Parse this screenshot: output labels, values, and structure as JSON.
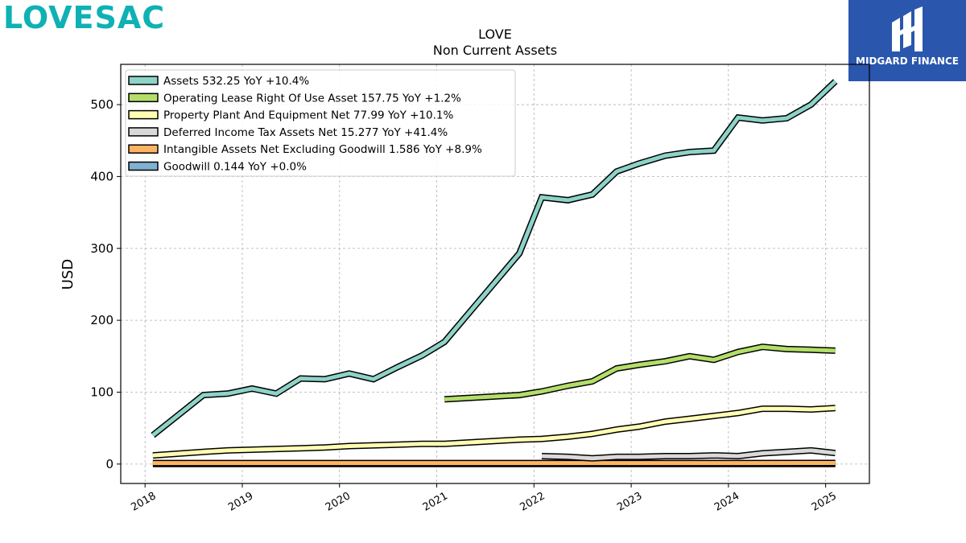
{
  "brand": {
    "logo_text": "LOVESAC"
  },
  "badge": {
    "label": "MIDGARD FINANCE",
    "color": "#2a56ad"
  },
  "chart_data": {
    "type": "line",
    "title": "LOVE",
    "subtitle": "Non Current  Assets",
    "xlabel": "",
    "ylabel": "USD",
    "ylim": [
      -27,
      556
    ],
    "xlim": [
      2017.75,
      2025.45
    ],
    "yticks": [
      0,
      100,
      200,
      300,
      400,
      500
    ],
    "xticks": [
      2018,
      2019,
      2020,
      2021,
      2022,
      2023,
      2024,
      2025
    ],
    "grid": true,
    "legend_position": "top-left",
    "series": [
      {
        "name": "Assets",
        "legend_label": "Assets  532.25 YoY +10.4%",
        "color": "#8dd3c7",
        "points": [
          [
            2018.08,
            40
          ],
          [
            2018.6,
            96
          ],
          [
            2018.85,
            98
          ],
          [
            2019.1,
            105
          ],
          [
            2019.35,
            98
          ],
          [
            2019.6,
            119
          ],
          [
            2019.85,
            118
          ],
          [
            2020.1,
            126
          ],
          [
            2020.35,
            118
          ],
          [
            2020.6,
            135
          ],
          [
            2020.85,
            151
          ],
          [
            2021.08,
            170
          ],
          [
            2021.85,
            293
          ],
          [
            2022.08,
            371
          ],
          [
            2022.35,
            367
          ],
          [
            2022.6,
            375
          ],
          [
            2022.85,
            407
          ],
          [
            2023.08,
            418
          ],
          [
            2023.35,
            429
          ],
          [
            2023.6,
            434
          ],
          [
            2023.85,
            436
          ],
          [
            2024.1,
            482
          ],
          [
            2024.35,
            478
          ],
          [
            2024.6,
            481
          ],
          [
            2024.85,
            500
          ],
          [
            2025.1,
            532.25
          ]
        ]
      },
      {
        "name": "Operating Lease Right Of Use Asset",
        "legend_label": "Operating Lease Right Of Use Asset  157.75 YoY +1.2%",
        "color": "#b3de69",
        "points": [
          [
            2021.08,
            90
          ],
          [
            2021.85,
            96
          ],
          [
            2022.08,
            101
          ],
          [
            2022.35,
            109
          ],
          [
            2022.6,
            115
          ],
          [
            2022.85,
            133
          ],
          [
            2023.08,
            138
          ],
          [
            2023.35,
            143
          ],
          [
            2023.6,
            150
          ],
          [
            2023.85,
            145
          ],
          [
            2024.1,
            156
          ],
          [
            2024.35,
            163
          ],
          [
            2024.6,
            160
          ],
          [
            2024.85,
            159
          ],
          [
            2025.1,
            157.75
          ]
        ]
      },
      {
        "name": "Property Plant And Equipment Net",
        "legend_label": "Property Plant And Equipment Net  77.99 YoY +10.1%",
        "color": "#ffffb3",
        "points": [
          [
            2018.08,
            12
          ],
          [
            2018.6,
            17
          ],
          [
            2018.85,
            19
          ],
          [
            2019.1,
            20
          ],
          [
            2019.35,
            21
          ],
          [
            2019.6,
            22
          ],
          [
            2019.85,
            23
          ],
          [
            2020.1,
            25
          ],
          [
            2020.35,
            26
          ],
          [
            2020.6,
            27
          ],
          [
            2020.85,
            28
          ],
          [
            2021.08,
            28
          ],
          [
            2021.85,
            34
          ],
          [
            2022.08,
            35
          ],
          [
            2022.35,
            38
          ],
          [
            2022.6,
            42
          ],
          [
            2022.85,
            48
          ],
          [
            2023.08,
            52
          ],
          [
            2023.35,
            59
          ],
          [
            2023.6,
            63
          ],
          [
            2023.85,
            67
          ],
          [
            2024.1,
            71
          ],
          [
            2024.35,
            77
          ],
          [
            2024.6,
            77
          ],
          [
            2024.85,
            76
          ],
          [
            2025.1,
            77.99
          ]
        ]
      },
      {
        "name": "Deferred Income Tax Assets Net",
        "legend_label": "Deferred Income Tax Assets Net  15.277 YoY +41.4%",
        "color": "#d9d9d9",
        "points": [
          [
            2022.08,
            11
          ],
          [
            2022.35,
            10
          ],
          [
            2022.6,
            8
          ],
          [
            2022.85,
            10
          ],
          [
            2023.08,
            10
          ],
          [
            2023.35,
            11
          ],
          [
            2023.6,
            11
          ],
          [
            2023.85,
            12
          ],
          [
            2024.1,
            11
          ],
          [
            2024.35,
            15
          ],
          [
            2024.6,
            17
          ],
          [
            2024.85,
            19
          ],
          [
            2025.1,
            15.277
          ]
        ]
      },
      {
        "name": "Intangible Assets Net Excluding Goodwill",
        "legend_label": "Intangible Assets Net Excluding Goodwill  1.586 YoY +8.9%",
        "color": "#fdb462",
        "points": [
          [
            2018.08,
            1.4
          ],
          [
            2019.1,
            1.4
          ],
          [
            2020.1,
            1.4
          ],
          [
            2021.08,
            1.4
          ],
          [
            2022.08,
            1.45
          ],
          [
            2023.08,
            1.46
          ],
          [
            2024.1,
            1.46
          ],
          [
            2025.1,
            1.586
          ]
        ]
      },
      {
        "name": "Goodwill",
        "legend_label": "Goodwill  0.144 YoY +0.0%",
        "color": "#80b1d3",
        "points": [
          [
            2018.08,
            0.144
          ],
          [
            2019.1,
            0.144
          ],
          [
            2020.1,
            0.144
          ],
          [
            2021.08,
            0.144
          ],
          [
            2022.08,
            0.144
          ],
          [
            2023.08,
            0.144
          ],
          [
            2024.1,
            0.144
          ],
          [
            2025.1,
            0.144
          ]
        ]
      }
    ]
  }
}
